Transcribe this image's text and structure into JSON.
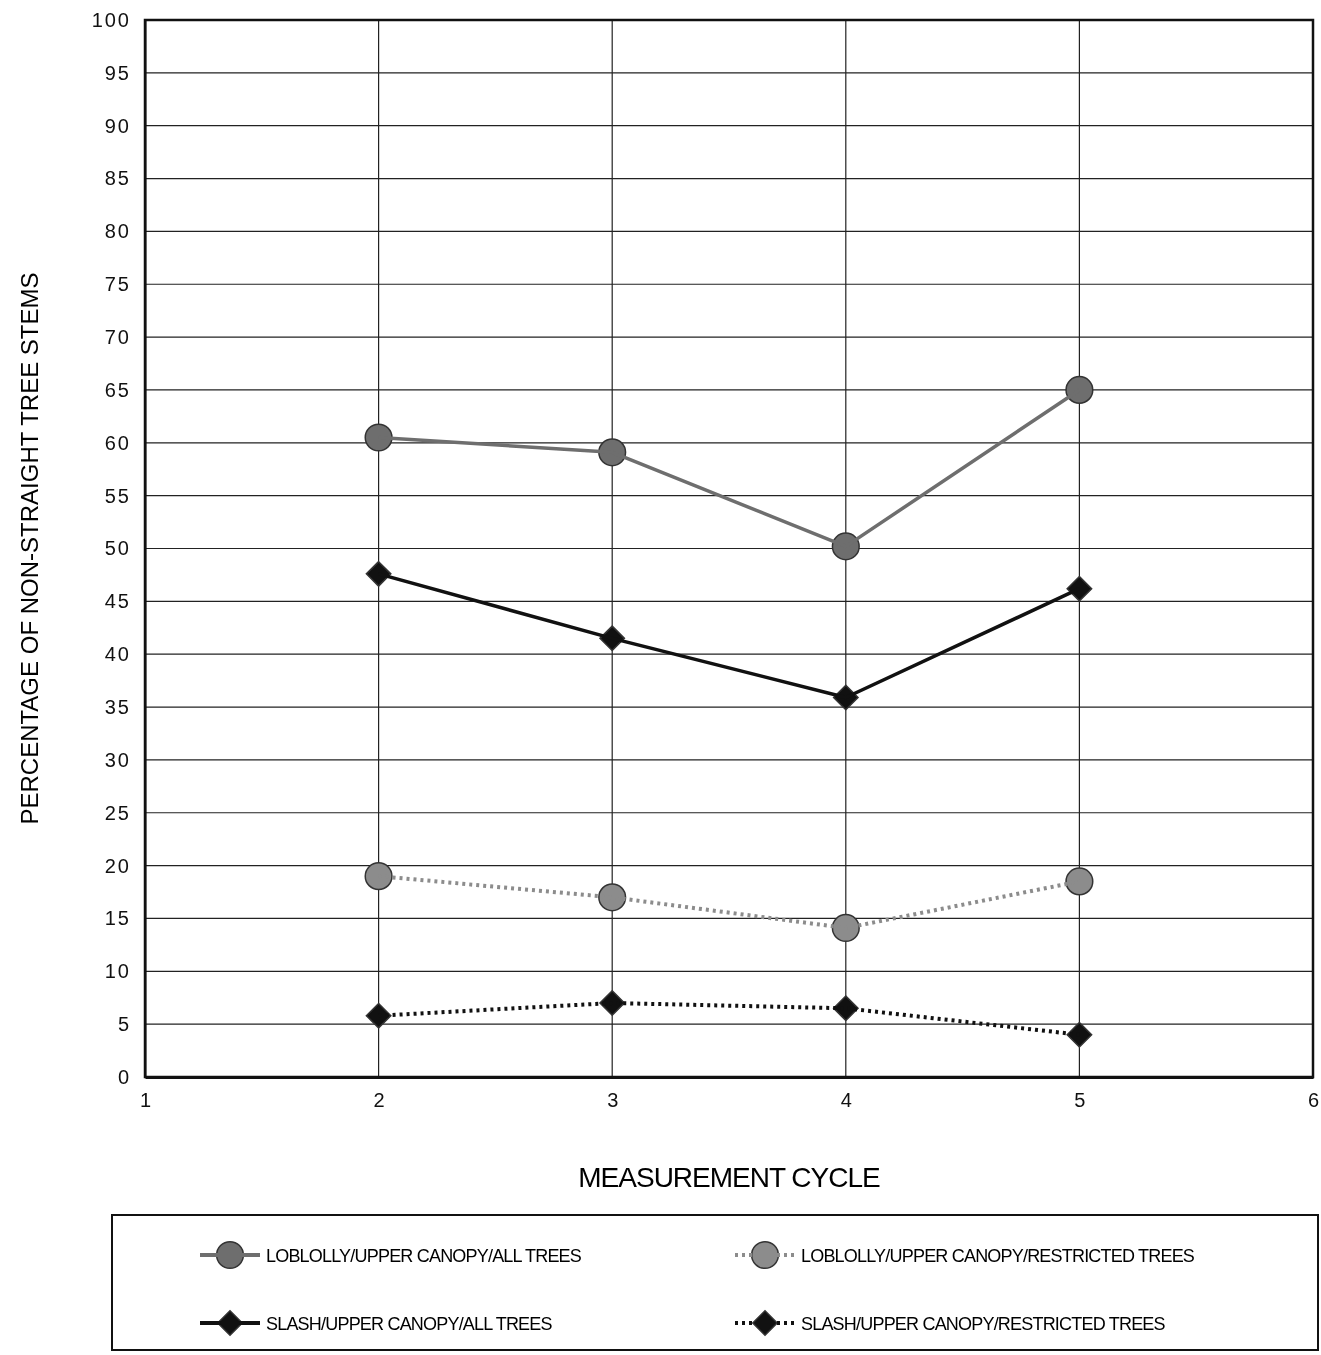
{
  "chart_data": {
    "type": "line",
    "xlabel": "MEASUREMENT CYCLE",
    "ylabel": "PERCENTAGE OF NON-STRAIGHT TREE STEMS",
    "x": [
      2,
      3,
      4,
      5
    ],
    "xlim": [
      1,
      6
    ],
    "xticks": [
      1,
      2,
      3,
      4,
      5,
      6
    ],
    "ylim": [
      0,
      100
    ],
    "yticks": [
      0,
      5,
      10,
      15,
      20,
      25,
      30,
      35,
      40,
      45,
      50,
      55,
      60,
      65,
      70,
      75,
      80,
      85,
      90,
      95,
      100
    ],
    "grid": true,
    "legend": "bottom",
    "series": [
      {
        "name": "LOBLOLLY/UPPER CANOPY/ALL TREES",
        "color": "#6e6e6e",
        "marker": "circle",
        "line_style": "solid",
        "values": [
          60.5,
          59.1,
          50.2,
          65
        ]
      },
      {
        "name": "LOBLOLLY/UPPER CANOPY/RESTRICTED TREES",
        "color": "#8c8c8c",
        "marker": "circle",
        "line_style": "dotted",
        "values": [
          19,
          17,
          14.1,
          18.5
        ]
      },
      {
        "name": "SLASH/UPPER CANOPY/ALL TREES",
        "color": "#111111",
        "marker": "diamond",
        "line_style": "solid",
        "values": [
          47.6,
          41.5,
          35.9,
          46.2
        ]
      },
      {
        "name": "SLASH/UPPER CANOPY/RESTRICTED TREES",
        "color": "#111111",
        "marker": "diamond",
        "line_style": "dotted",
        "values": [
          5.8,
          7,
          6.5,
          4
        ]
      }
    ]
  }
}
